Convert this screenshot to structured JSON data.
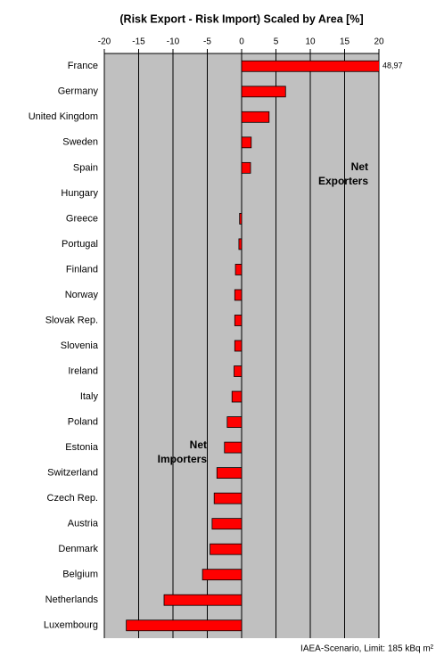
{
  "chart_data": {
    "type": "bar",
    "orientation": "horizontal",
    "title": "(Risk Export - Risk Import) Scaled by Area [%]",
    "categories": [
      "France",
      "Germany",
      "United Kingdom",
      "Sweden",
      "Spain",
      "Hungary",
      "Greece",
      "Portugal",
      "Finland",
      "Norway",
      "Slovak Rep.",
      "Slovenia",
      "Ireland",
      "Italy",
      "Poland",
      "Estonia",
      "Switzerland",
      "Czech Rep.",
      "Austria",
      "Denmark",
      "Belgium",
      "Netherlands",
      "Luxembourg"
    ],
    "values": [
      48.97,
      6.4,
      4.0,
      1.4,
      1.3,
      0,
      -0.3,
      -0.4,
      -0.9,
      -1.0,
      -1.0,
      -1.0,
      -1.1,
      -1.4,
      -2.1,
      -2.5,
      -3.6,
      -4.0,
      -4.3,
      -4.6,
      -5.7,
      -11.3,
      -16.8
    ],
    "value_labels": [
      "48,97",
      null,
      null,
      null,
      null,
      null,
      null,
      null,
      null,
      null,
      null,
      null,
      null,
      null,
      null,
      null,
      null,
      null,
      null,
      null,
      null,
      null,
      null
    ],
    "color": "#ff0000",
    "xlim": [
      -20,
      20
    ],
    "xticks": [
      -20,
      -15,
      -10,
      -5,
      0,
      5,
      10,
      15,
      20
    ],
    "grid": true,
    "annotations": [
      {
        "lines": [
          "Net",
          "Exporters"
        ]
      },
      {
        "lines": [
          "Net",
          "Importers"
        ]
      }
    ],
    "footnote": "IAEA-Scenario, Limit: 185 kBq m²"
  }
}
